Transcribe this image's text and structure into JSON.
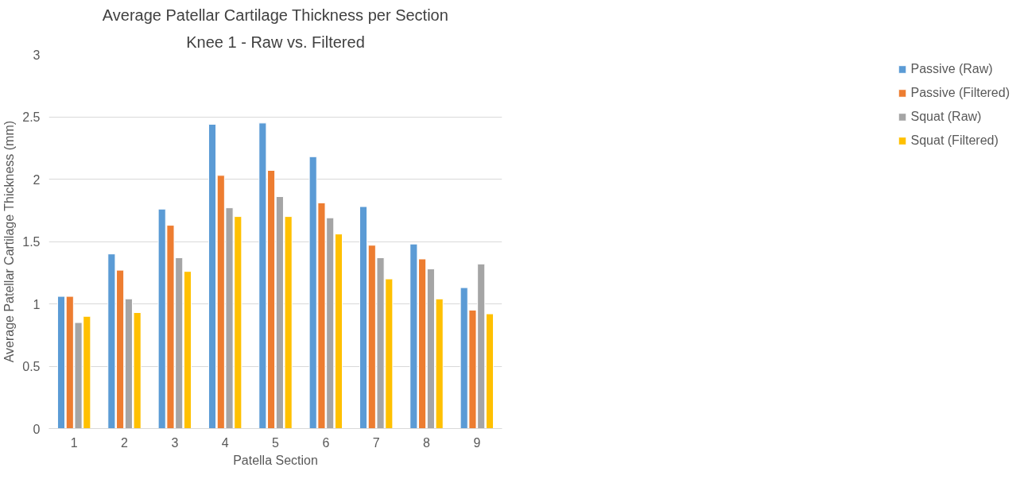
{
  "chart_data": {
    "type": "bar",
    "title": "Average Patellar Cartilage Thickness per Section",
    "subtitle": "Knee 1 - Raw vs. Filtered",
    "xlabel": "Patella Section",
    "ylabel": "Average Patellar Cartilage Thickness (mm)",
    "categories": [
      "1",
      "2",
      "3",
      "4",
      "5",
      "6",
      "7",
      "8",
      "9"
    ],
    "series": [
      {
        "name": "Passive (Raw)",
        "color": "#5b9bd5",
        "values": [
          1.06,
          1.4,
          1.76,
          2.44,
          2.45,
          2.18,
          1.78,
          1.48,
          1.13
        ]
      },
      {
        "name": "Passive (Filtered)",
        "color": "#ed7d31",
        "values": [
          1.06,
          1.27,
          1.63,
          2.03,
          2.07,
          1.81,
          1.47,
          1.36,
          0.95
        ]
      },
      {
        "name": "Squat (Raw)",
        "color": "#a5a5a5",
        "values": [
          0.85,
          1.04,
          1.37,
          1.77,
          1.86,
          1.69,
          1.37,
          1.28,
          1.32
        ]
      },
      {
        "name": "Squat (Filtered)",
        "color": "#ffc000",
        "values": [
          0.9,
          0.93,
          1.26,
          1.7,
          1.7,
          1.56,
          1.2,
          1.04,
          0.92
        ]
      }
    ],
    "ylim": [
      0,
      3
    ],
    "yticks": [
      0,
      0.5,
      1,
      1.5,
      2,
      2.5,
      3
    ],
    "grid": "y",
    "legend": "right"
  }
}
